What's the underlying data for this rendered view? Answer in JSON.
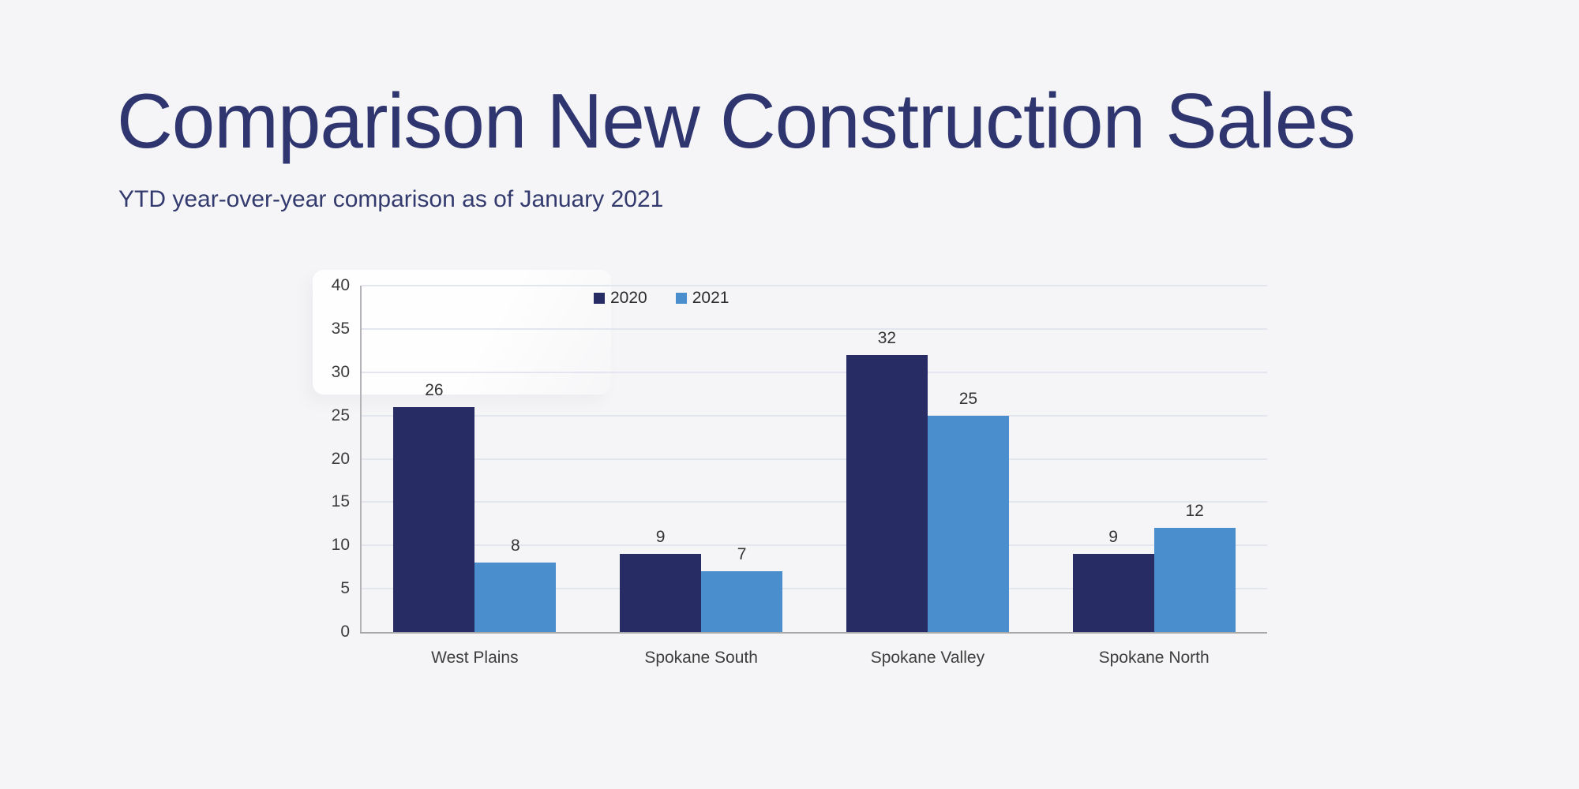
{
  "header": {
    "title": "Comparison New Construction Sales",
    "subtitle": "YTD year-over-year comparison as of January 2021"
  },
  "colors": {
    "background": "#f5f5f7",
    "title_text": "#2e356f",
    "series_2020": "#272c64",
    "series_2021": "#4b8ecd",
    "gridline": "#e3e5ef",
    "axis": "#a8a8ab"
  },
  "chart_data": {
    "type": "bar",
    "title": "",
    "xlabel": "",
    "ylabel": "",
    "categories": [
      "West Plains",
      "Spokane South",
      "Spokane Valley",
      "Spokane North"
    ],
    "series": [
      {
        "name": "2020",
        "color": "#272c64",
        "values": [
          26,
          9,
          32,
          9
        ]
      },
      {
        "name": "2021",
        "color": "#4b8ecd",
        "values": [
          8,
          7,
          25,
          12
        ]
      }
    ],
    "ylim": [
      0,
      40
    ],
    "ytick_step": 5,
    "yticks": [
      0,
      5,
      10,
      15,
      20,
      25,
      30,
      35,
      40
    ],
    "grid": true,
    "legend_position": "top",
    "data_labels": true
  }
}
